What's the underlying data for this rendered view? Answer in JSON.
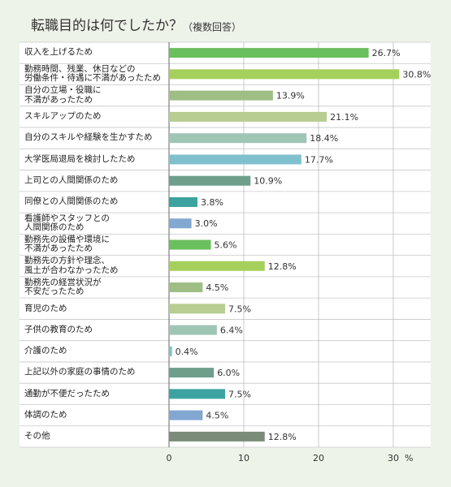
{
  "chart_data": {
    "type": "barh",
    "title": "転職目的は何でしたか？",
    "subtitle": "（複数回答）",
    "xlabel": "%",
    "categories": [
      "収入を上げるため",
      "勤務時間、残業、休日などの\n労働条件・待遇に不満があったため",
      "自分の立場・役職に\n不満があったため",
      "スキルアップのため",
      "自分のスキルや経験を生かすため",
      "大学医局退局を検討したため",
      "上司との人間関係のため",
      "同僚との人間関係のため",
      "看護師やスタッフとの\n人間関係のため",
      "勤務先の設備や環境に\n不満があったため",
      "勤務先の方針や理念、\n風土が合わなかったため",
      "勤務先の経営状況が\n不安だったため",
      "育児のため",
      "子供の教育のため",
      "介護のため",
      "上記以外の家庭の事情のため",
      "通勤が不便だったため",
      "体調のため",
      "その他"
    ],
    "values": [
      26.7,
      30.8,
      13.9,
      21.1,
      18.4,
      17.7,
      10.9,
      3.8,
      3.0,
      5.6,
      12.8,
      4.5,
      7.5,
      6.4,
      0.4,
      6.0,
      7.5,
      4.5,
      12.8
    ],
    "value_labels": [
      "26.7%",
      "30.8%",
      "13.9%",
      "21.1%",
      "18.4%",
      "17.7%",
      "10.9%",
      "3.8%",
      "3.0%",
      "5.6%",
      "12.8%",
      "4.5%",
      "7.5%",
      "6.4%",
      "0.4%",
      "6.0%",
      "7.5%",
      "4.5%",
      "12.8%"
    ],
    "colors": [
      "#6abf5e",
      "#a6d05c",
      "#9fbe86",
      "#b7cd92",
      "#9fc6b4",
      "#7fc0cf",
      "#6f9f8b",
      "#3ca3a1",
      "#82a8d2",
      "#6abf5e",
      "#a6d05c",
      "#9fbe86",
      "#b7cd92",
      "#9fc6b4",
      "#7fc0cf",
      "#6f9f8b",
      "#3ca3a1",
      "#82a8d2",
      "#7b8d79"
    ],
    "xlim": [
      0,
      35
    ],
    "xticks": [
      0,
      10,
      20,
      30
    ],
    "grid": true
  }
}
